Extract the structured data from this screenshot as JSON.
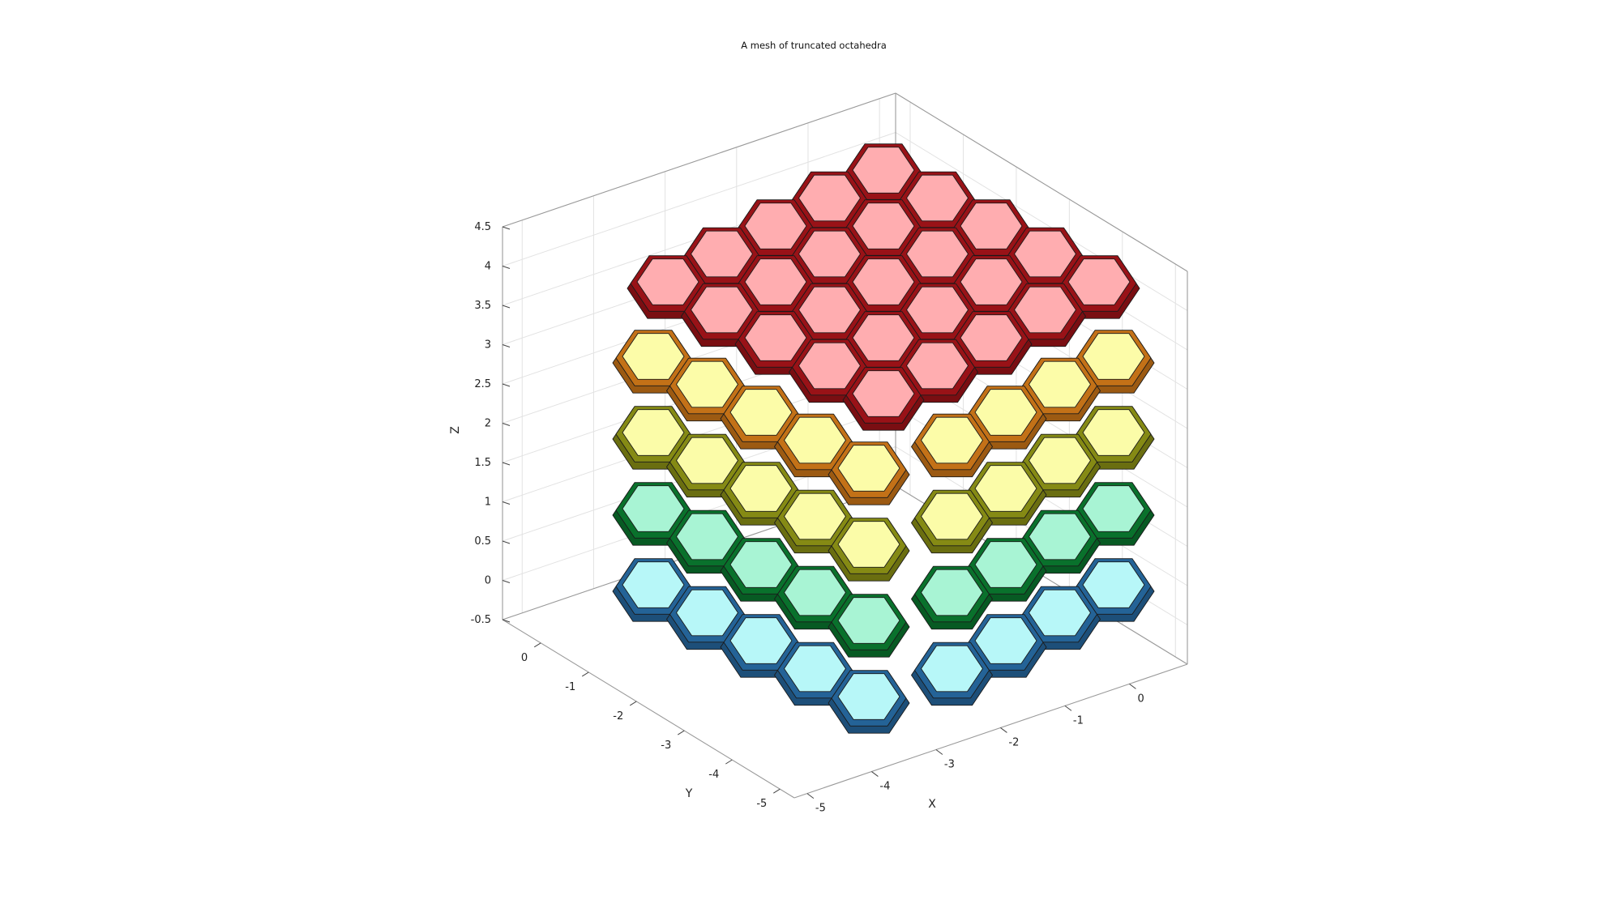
{
  "figure": {
    "title": "A mesh of truncated octahedra"
  },
  "axes": {
    "x_label": "X",
    "y_label": "Y",
    "z_label": "Z",
    "x_ticks": [
      "-5",
      "-4",
      "-3",
      "-2",
      "-1",
      "0"
    ],
    "y_ticks": [
      "-5",
      "-4",
      "-3",
      "-2",
      "-1",
      "0"
    ],
    "z_ticks": [
      "-0.5",
      "0",
      "0.5",
      "1",
      "1.5",
      "2",
      "2.5",
      "3",
      "3.5",
      "4",
      "4.5"
    ],
    "x_range": [
      -5,
      0.5
    ],
    "y_range": [
      -5,
      0.5
    ],
    "z_range": [
      -0.5,
      4.5
    ],
    "grid": true,
    "box": true
  },
  "mesh": {
    "shape": "truncated octahedra",
    "layers": [
      {
        "name": "bottom",
        "face_color": "#b7f7f8",
        "side_color": "#1d4f79"
      },
      {
        "name": "lower",
        "face_color": "#a8f4d4",
        "side_color": "#075a23"
      },
      {
        "name": "middle",
        "face_color": "#fbfca8",
        "side_color": "#6a6e10"
      },
      {
        "name": "upper",
        "face_color": "#fcfca8",
        "side_color": "#9c5a12"
      },
      {
        "name": "top",
        "face_color": "#ffadb0",
        "side_color": "#7a0e12"
      }
    ]
  }
}
